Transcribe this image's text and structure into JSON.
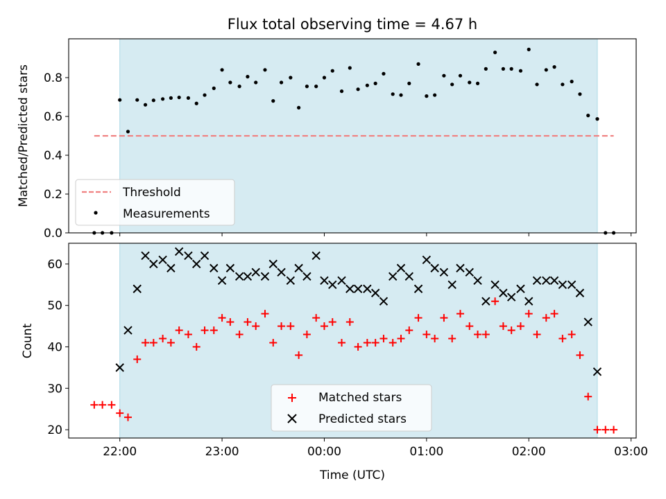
{
  "chart_data": [
    {
      "type": "scatter",
      "title": "Flux total observing time = 4.67 h",
      "ylabel": "Matched/Predicted stars",
      "xlabel": "",
      "xlim_hours": [
        21.5,
        27.05
      ],
      "ylim": [
        0,
        1.0
      ],
      "yticks": [
        0.0,
        0.2,
        0.4,
        0.6,
        0.8
      ],
      "ytick_labels": [
        "0.0",
        "0.2",
        "0.4",
        "0.6",
        "0.8"
      ],
      "observing_window_hours": [
        22.0,
        26.67
      ],
      "threshold": {
        "name": "Threshold",
        "y": 0.5,
        "x_range_hours": [
          21.75,
          26.83
        ],
        "color": "#f08080"
      },
      "legend": {
        "placement": "lower-left",
        "entries": [
          "Threshold",
          "Measurements"
        ]
      },
      "series": [
        {
          "name": "Measurements",
          "color": "#000000",
          "x_hours": [
            21.75,
            21.83,
            21.92,
            22.0,
            22.08,
            22.17,
            22.25,
            22.33,
            22.42,
            22.5,
            22.58,
            22.67,
            22.75,
            22.83,
            22.92,
            23.0,
            23.08,
            23.17,
            23.25,
            23.33,
            23.42,
            23.5,
            23.58,
            23.67,
            23.75,
            23.83,
            23.92,
            24.0,
            24.08,
            24.17,
            24.25,
            24.33,
            24.42,
            24.5,
            24.58,
            24.67,
            24.75,
            24.83,
            24.92,
            25.0,
            25.08,
            25.17,
            25.25,
            25.33,
            25.42,
            25.5,
            25.58,
            25.67,
            25.75,
            25.83,
            25.92,
            26.0,
            26.08,
            26.17,
            26.25,
            26.33,
            26.42,
            26.5,
            26.58,
            26.67,
            26.75,
            26.83
          ],
          "y": [
            0.0,
            0.0,
            0.0,
            0.685,
            0.522,
            0.685,
            0.66,
            0.683,
            0.69,
            0.695,
            0.698,
            0.695,
            0.667,
            0.71,
            0.745,
            0.84,
            0.775,
            0.755,
            0.805,
            0.775,
            0.84,
            0.68,
            0.775,
            0.8,
            0.645,
            0.755,
            0.755,
            0.8,
            0.835,
            0.73,
            0.85,
            0.74,
            0.76,
            0.77,
            0.82,
            0.715,
            0.71,
            0.77,
            0.87,
            0.705,
            0.71,
            0.81,
            0.765,
            0.81,
            0.775,
            0.77,
            0.845,
            0.93,
            0.845,
            0.845,
            0.835,
            0.945,
            0.765,
            0.84,
            0.855,
            0.765,
            0.78,
            0.715,
            0.605,
            0.587,
            0.0,
            0.0
          ]
        }
      ]
    },
    {
      "type": "scatter",
      "ylabel": "Count",
      "xlabel": "Time (UTC)",
      "xlim_hours": [
        21.5,
        27.05
      ],
      "ylim": [
        18,
        65
      ],
      "yticks": [
        20,
        30,
        40,
        50,
        60
      ],
      "ytick_labels": [
        "20",
        "30",
        "40",
        "50",
        "60"
      ],
      "xticks_hours": [
        22,
        23,
        24,
        25,
        26,
        27
      ],
      "xtick_labels": [
        "22:00",
        "23:00",
        "00:00",
        "01:00",
        "02:00",
        "03:00"
      ],
      "observing_window_hours": [
        22.0,
        26.67
      ],
      "legend": {
        "placement": "lower-center",
        "entries": [
          "Matched stars",
          "Predicted stars"
        ]
      },
      "series": [
        {
          "name": "Matched stars",
          "color": "#ff0000",
          "x_hours": [
            21.75,
            21.83,
            21.92,
            22.0,
            22.08,
            22.17,
            22.25,
            22.33,
            22.42,
            22.5,
            22.58,
            22.67,
            22.75,
            22.83,
            22.92,
            23.0,
            23.08,
            23.17,
            23.25,
            23.33,
            23.42,
            23.5,
            23.58,
            23.67,
            23.75,
            23.83,
            23.92,
            24.0,
            24.08,
            24.17,
            24.25,
            24.33,
            24.42,
            24.5,
            24.58,
            24.67,
            24.75,
            24.83,
            24.92,
            25.0,
            25.08,
            25.17,
            25.25,
            25.33,
            25.42,
            25.5,
            25.58,
            25.67,
            25.75,
            25.83,
            25.92,
            26.0,
            26.08,
            26.17,
            26.25,
            26.33,
            26.42,
            26.5,
            26.58,
            26.67,
            26.75,
            26.83
          ],
          "y": [
            26,
            26,
            26,
            24,
            23,
            37,
            41,
            41,
            42,
            41,
            44,
            43,
            40,
            44,
            44,
            47,
            46,
            43,
            46,
            45,
            48,
            41,
            45,
            45,
            38,
            43,
            47,
            45,
            46,
            41,
            46,
            40,
            41,
            41,
            42,
            41,
            42,
            44,
            47,
            43,
            42,
            47,
            42,
            48,
            45,
            43,
            43,
            51,
            45,
            44,
            45,
            48,
            43,
            47,
            48,
            42,
            43,
            38,
            28,
            20,
            20,
            20
          ]
        },
        {
          "name": "Predicted stars",
          "color": "#000000",
          "x_hours": [
            22.0,
            22.08,
            22.17,
            22.25,
            22.33,
            22.42,
            22.5,
            22.58,
            22.67,
            22.75,
            22.83,
            22.92,
            23.0,
            23.08,
            23.17,
            23.25,
            23.33,
            23.42,
            23.5,
            23.58,
            23.67,
            23.75,
            23.83,
            23.92,
            24.0,
            24.08,
            24.17,
            24.25,
            24.33,
            24.42,
            24.5,
            24.58,
            24.67,
            24.75,
            24.83,
            24.92,
            25.0,
            25.08,
            25.17,
            25.25,
            25.33,
            25.42,
            25.5,
            25.58,
            25.67,
            25.75,
            25.83,
            25.92,
            26.0,
            26.08,
            26.17,
            26.25,
            26.33,
            26.42,
            26.5,
            26.58,
            26.67
          ],
          "y": [
            35,
            44,
            54,
            62,
            60,
            61,
            59,
            63,
            62,
            60,
            62,
            59,
            56,
            59,
            57,
            57,
            58,
            57,
            60,
            58,
            56,
            59,
            57,
            62,
            56,
            55,
            56,
            54,
            54,
            54,
            53,
            51,
            57,
            59,
            57,
            54,
            61,
            59,
            58,
            55,
            59,
            58,
            56,
            51,
            55,
            53,
            52,
            54,
            51,
            56,
            56,
            56,
            55,
            55,
            53,
            46,
            34
          ]
        }
      ]
    }
  ]
}
